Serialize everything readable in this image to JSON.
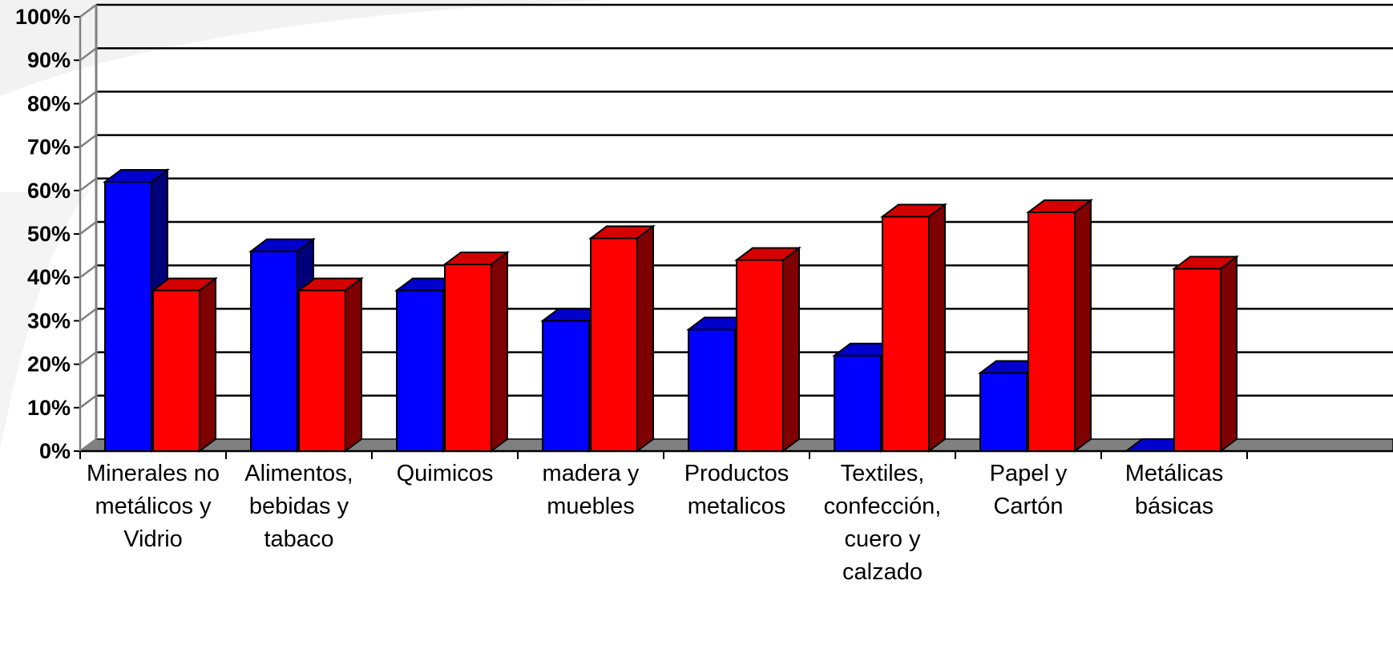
{
  "chart_data": {
    "type": "bar",
    "categories": [
      [
        "Minerales no",
        "metálicos y",
        "Vidrio"
      ],
      [
        "Alimentos,",
        "bebidas y",
        "tabaco"
      ],
      [
        "Quimicos"
      ],
      [
        "madera y",
        "muebles"
      ],
      [
        "Productos",
        "metalicos"
      ],
      [
        "Textiles,",
        "confección,",
        "cuero y",
        "calzado"
      ],
      [
        "Papel y",
        "Cartón"
      ],
      [
        "Metálicas",
        "básicas"
      ]
    ],
    "series": [
      {
        "color": "#0000ff",
        "side_color": "#00007a",
        "top_color": "#0000cc",
        "values": [
          62,
          46,
          37,
          30,
          28,
          22,
          18,
          0
        ]
      },
      {
        "color": "#ff0000",
        "side_color": "#7f0000",
        "top_color": "#d40000",
        "values": [
          37,
          37,
          43,
          49,
          44,
          54,
          55,
          42
        ]
      }
    ],
    "yticks": [
      "0%",
      "10%",
      "20%",
      "30%",
      "40%",
      "50%",
      "60%",
      "70%",
      "80%",
      "90%",
      "100%"
    ],
    "ylim": [
      0,
      100
    ],
    "grid": true,
    "style": "3d-clustered-columns"
  }
}
